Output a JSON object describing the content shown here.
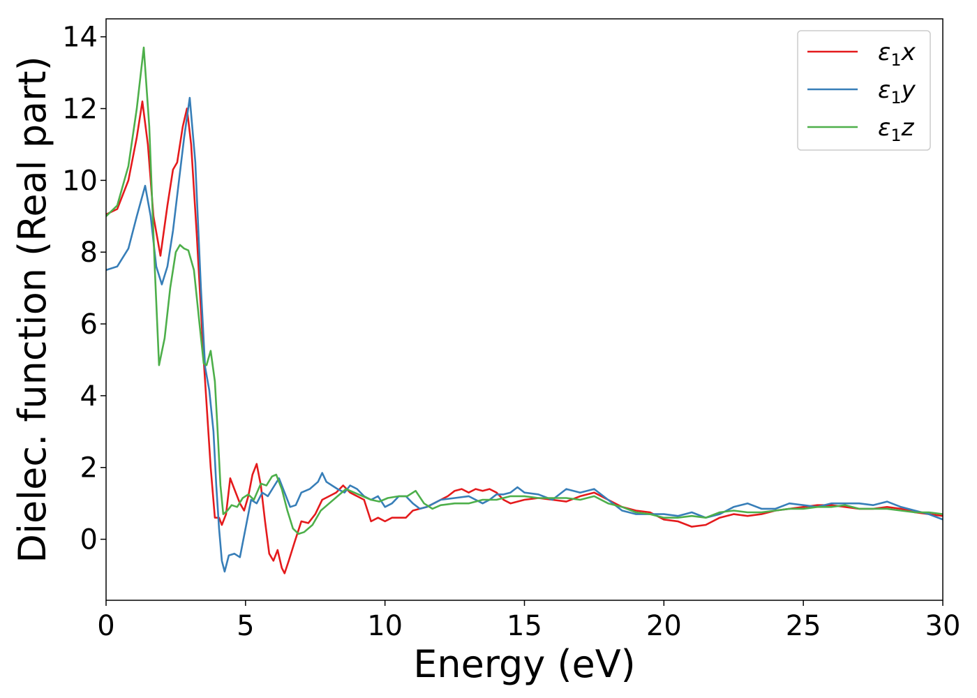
{
  "chart_data": {
    "type": "line",
    "title": "",
    "xlabel": "Energy (eV)",
    "ylabel": "Dielec. function (Real part)",
    "xlim": [
      0,
      30
    ],
    "ylim": [
      -1.7,
      14.5
    ],
    "xticks": [
      0,
      5,
      10,
      15,
      20,
      25,
      30
    ],
    "xtick_labels": [
      "0",
      "5",
      "10",
      "15",
      "20",
      "25",
      "30"
    ],
    "yticks": [
      0,
      2,
      4,
      6,
      8,
      10,
      12,
      14
    ],
    "ytick_labels": [
      "0",
      "2",
      "4",
      "6",
      "8",
      "10",
      "12",
      "14"
    ],
    "grid": false,
    "legend": {
      "placement": "top-right"
    },
    "series": [
      {
        "name": "ε₁x",
        "legend_base": "ε",
        "legend_sub": "1",
        "legend_var": "x",
        "color": "#e41a1c",
        "points": [
          [
            0,
            9.05
          ],
          [
            0.4,
            9.2
          ],
          [
            0.8,
            10.0
          ],
          [
            1.1,
            11.2
          ],
          [
            1.3,
            12.2
          ],
          [
            1.5,
            11.0
          ],
          [
            1.7,
            9.0
          ],
          [
            1.95,
            7.9
          ],
          [
            2.2,
            9.3
          ],
          [
            2.4,
            10.3
          ],
          [
            2.55,
            10.5
          ],
          [
            2.75,
            11.5
          ],
          [
            2.9,
            12.0
          ],
          [
            3.05,
            11.0
          ],
          [
            3.25,
            8.5
          ],
          [
            3.5,
            5.0
          ],
          [
            3.75,
            2.0
          ],
          [
            3.9,
            0.6
          ],
          [
            4.05,
            0.6
          ],
          [
            4.15,
            0.4
          ],
          [
            4.3,
            0.7
          ],
          [
            4.45,
            1.7
          ],
          [
            4.6,
            1.4
          ],
          [
            4.8,
            1.0
          ],
          [
            4.95,
            0.8
          ],
          [
            5.1,
            1.2
          ],
          [
            5.25,
            1.8
          ],
          [
            5.4,
            2.1
          ],
          [
            5.55,
            1.5
          ],
          [
            5.7,
            0.5
          ],
          [
            5.85,
            -0.4
          ],
          [
            6.0,
            -0.6
          ],
          [
            6.15,
            -0.3
          ],
          [
            6.3,
            -0.8
          ],
          [
            6.4,
            -0.95
          ],
          [
            6.55,
            -0.6
          ],
          [
            6.75,
            -0.1
          ],
          [
            7.0,
            0.5
          ],
          [
            7.25,
            0.45
          ],
          [
            7.5,
            0.7
          ],
          [
            7.75,
            1.1
          ],
          [
            8.0,
            1.2
          ],
          [
            8.25,
            1.3
          ],
          [
            8.5,
            1.5
          ],
          [
            8.75,
            1.3
          ],
          [
            9.0,
            1.2
          ],
          [
            9.25,
            1.1
          ],
          [
            9.5,
            0.5
          ],
          [
            9.75,
            0.6
          ],
          [
            10.0,
            0.5
          ],
          [
            10.25,
            0.6
          ],
          [
            10.5,
            0.6
          ],
          [
            10.75,
            0.6
          ],
          [
            11.0,
            0.8
          ],
          [
            11.25,
            0.85
          ],
          [
            11.5,
            0.9
          ],
          [
            11.75,
            1.0
          ],
          [
            12.0,
            1.1
          ],
          [
            12.25,
            1.2
          ],
          [
            12.5,
            1.35
          ],
          [
            12.75,
            1.4
          ],
          [
            13.0,
            1.3
          ],
          [
            13.25,
            1.4
          ],
          [
            13.5,
            1.35
          ],
          [
            13.75,
            1.4
          ],
          [
            14.0,
            1.3
          ],
          [
            14.25,
            1.1
          ],
          [
            14.5,
            1.0
          ],
          [
            15.0,
            1.1
          ],
          [
            15.5,
            1.15
          ],
          [
            16.0,
            1.1
          ],
          [
            16.5,
            1.05
          ],
          [
            17.0,
            1.2
          ],
          [
            17.5,
            1.3
          ],
          [
            18.0,
            1.1
          ],
          [
            18.5,
            0.9
          ],
          [
            19.0,
            0.8
          ],
          [
            19.5,
            0.75
          ],
          [
            20.0,
            0.55
          ],
          [
            20.5,
            0.5
          ],
          [
            21.0,
            0.35
          ],
          [
            21.5,
            0.4
          ],
          [
            22.0,
            0.6
          ],
          [
            22.5,
            0.7
          ],
          [
            23.0,
            0.65
          ],
          [
            23.5,
            0.7
          ],
          [
            24.0,
            0.8
          ],
          [
            24.5,
            0.85
          ],
          [
            25.0,
            0.9
          ],
          [
            25.5,
            0.95
          ],
          [
            26.0,
            0.95
          ],
          [
            26.5,
            0.9
          ],
          [
            27.0,
            0.85
          ],
          [
            27.5,
            0.85
          ],
          [
            28.0,
            0.9
          ],
          [
            28.5,
            0.85
          ],
          [
            29.0,
            0.75
          ],
          [
            29.5,
            0.7
          ],
          [
            30.0,
            0.65
          ]
        ]
      },
      {
        "name": "ε₁y",
        "legend_base": "ε",
        "legend_sub": "1",
        "legend_var": "y",
        "color": "#377eb8",
        "points": [
          [
            0,
            7.5
          ],
          [
            0.4,
            7.6
          ],
          [
            0.8,
            8.1
          ],
          [
            1.1,
            9.0
          ],
          [
            1.4,
            9.85
          ],
          [
            1.6,
            9.0
          ],
          [
            1.8,
            7.6
          ],
          [
            2.0,
            7.1
          ],
          [
            2.2,
            7.6
          ],
          [
            2.4,
            8.6
          ],
          [
            2.6,
            9.9
          ],
          [
            2.8,
            11.2
          ],
          [
            3.0,
            12.3
          ],
          [
            3.2,
            10.5
          ],
          [
            3.4,
            7.0
          ],
          [
            3.55,
            4.8
          ],
          [
            3.7,
            4.15
          ],
          [
            3.85,
            3.0
          ],
          [
            3.95,
            1.5
          ],
          [
            4.05,
            0.3
          ],
          [
            4.15,
            -0.6
          ],
          [
            4.25,
            -0.9
          ],
          [
            4.4,
            -0.45
          ],
          [
            4.6,
            -0.4
          ],
          [
            4.8,
            -0.5
          ],
          [
            5.0,
            0.3
          ],
          [
            5.2,
            1.1
          ],
          [
            5.4,
            1.0
          ],
          [
            5.6,
            1.3
          ],
          [
            5.8,
            1.2
          ],
          [
            6.0,
            1.45
          ],
          [
            6.2,
            1.7
          ],
          [
            6.4,
            1.3
          ],
          [
            6.6,
            0.9
          ],
          [
            6.8,
            0.95
          ],
          [
            7.0,
            1.3
          ],
          [
            7.3,
            1.4
          ],
          [
            7.6,
            1.6
          ],
          [
            7.75,
            1.85
          ],
          [
            7.9,
            1.6
          ],
          [
            8.1,
            1.5
          ],
          [
            8.3,
            1.4
          ],
          [
            8.55,
            1.3
          ],
          [
            8.75,
            1.5
          ],
          [
            9.0,
            1.4
          ],
          [
            9.25,
            1.2
          ],
          [
            9.5,
            1.1
          ],
          [
            9.75,
            1.2
          ],
          [
            10.0,
            0.9
          ],
          [
            10.25,
            1.0
          ],
          [
            10.5,
            1.2
          ],
          [
            10.75,
            1.2
          ],
          [
            11.0,
            1.0
          ],
          [
            11.25,
            0.85
          ],
          [
            11.5,
            0.9
          ],
          [
            11.75,
            1.0
          ],
          [
            12.0,
            1.1
          ],
          [
            12.5,
            1.15
          ],
          [
            13.0,
            1.2
          ],
          [
            13.25,
            1.1
          ],
          [
            13.5,
            1.0
          ],
          [
            13.75,
            1.1
          ],
          [
            14.0,
            1.25
          ],
          [
            14.25,
            1.25
          ],
          [
            14.5,
            1.3
          ],
          [
            14.75,
            1.45
          ],
          [
            15.0,
            1.3
          ],
          [
            15.5,
            1.25
          ],
          [
            16.0,
            1.1
          ],
          [
            16.5,
            1.4
          ],
          [
            17.0,
            1.3
          ],
          [
            17.5,
            1.4
          ],
          [
            18.0,
            1.1
          ],
          [
            18.5,
            0.8
          ],
          [
            19.0,
            0.7
          ],
          [
            19.5,
            0.7
          ],
          [
            20.0,
            0.7
          ],
          [
            20.5,
            0.65
          ],
          [
            21.0,
            0.75
          ],
          [
            21.5,
            0.6
          ],
          [
            22.0,
            0.7
          ],
          [
            22.5,
            0.9
          ],
          [
            23.0,
            1.0
          ],
          [
            23.5,
            0.85
          ],
          [
            24.0,
            0.85
          ],
          [
            24.5,
            1.0
          ],
          [
            25.0,
            0.95
          ],
          [
            25.5,
            0.9
          ],
          [
            26.0,
            1.0
          ],
          [
            26.5,
            1.0
          ],
          [
            27.0,
            1.0
          ],
          [
            27.5,
            0.95
          ],
          [
            28.0,
            1.05
          ],
          [
            28.5,
            0.9
          ],
          [
            29.0,
            0.8
          ],
          [
            29.5,
            0.7
          ],
          [
            30.0,
            0.55
          ]
        ]
      },
      {
        "name": "ε₁z",
        "legend_base": "ε",
        "legend_sub": "1",
        "legend_var": "z",
        "color": "#4daf4a",
        "points": [
          [
            0,
            9.0
          ],
          [
            0.4,
            9.3
          ],
          [
            0.8,
            10.4
          ],
          [
            1.1,
            12.0
          ],
          [
            1.35,
            13.7
          ],
          [
            1.55,
            11.5
          ],
          [
            1.75,
            7.5
          ],
          [
            1.9,
            4.85
          ],
          [
            2.1,
            5.6
          ],
          [
            2.3,
            7.0
          ],
          [
            2.5,
            8.0
          ],
          [
            2.65,
            8.2
          ],
          [
            2.8,
            8.1
          ],
          [
            2.95,
            8.05
          ],
          [
            3.15,
            7.5
          ],
          [
            3.35,
            6.0
          ],
          [
            3.5,
            4.9
          ],
          [
            3.6,
            4.85
          ],
          [
            3.75,
            5.25
          ],
          [
            3.9,
            4.4
          ],
          [
            4.0,
            3.0
          ],
          [
            4.1,
            1.5
          ],
          [
            4.2,
            0.7
          ],
          [
            4.35,
            0.8
          ],
          [
            4.5,
            0.95
          ],
          [
            4.7,
            0.9
          ],
          [
            4.9,
            1.15
          ],
          [
            5.1,
            1.25
          ],
          [
            5.3,
            1.1
          ],
          [
            5.55,
            1.55
          ],
          [
            5.75,
            1.5
          ],
          [
            5.95,
            1.75
          ],
          [
            6.1,
            1.8
          ],
          [
            6.3,
            1.4
          ],
          [
            6.5,
            0.8
          ],
          [
            6.7,
            0.3
          ],
          [
            6.9,
            0.15
          ],
          [
            7.1,
            0.2
          ],
          [
            7.4,
            0.4
          ],
          [
            7.7,
            0.8
          ],
          [
            8.0,
            1.0
          ],
          [
            8.3,
            1.2
          ],
          [
            8.6,
            1.4
          ],
          [
            8.9,
            1.3
          ],
          [
            9.2,
            1.2
          ],
          [
            9.5,
            1.1
          ],
          [
            9.8,
            1.05
          ],
          [
            10.1,
            1.15
          ],
          [
            10.5,
            1.2
          ],
          [
            10.8,
            1.2
          ],
          [
            11.1,
            1.35
          ],
          [
            11.4,
            1.0
          ],
          [
            11.7,
            0.85
          ],
          [
            12.0,
            0.95
          ],
          [
            12.5,
            1.0
          ],
          [
            13.0,
            1.0
          ],
          [
            13.5,
            1.1
          ],
          [
            14.0,
            1.1
          ],
          [
            14.5,
            1.2
          ],
          [
            15.0,
            1.2
          ],
          [
            15.5,
            1.15
          ],
          [
            16.0,
            1.15
          ],
          [
            16.5,
            1.15
          ],
          [
            17.0,
            1.1
          ],
          [
            17.5,
            1.2
          ],
          [
            18.0,
            1.0
          ],
          [
            18.5,
            0.9
          ],
          [
            19.0,
            0.75
          ],
          [
            19.5,
            0.7
          ],
          [
            20.0,
            0.6
          ],
          [
            20.5,
            0.6
          ],
          [
            21.0,
            0.65
          ],
          [
            21.5,
            0.6
          ],
          [
            22.0,
            0.75
          ],
          [
            22.5,
            0.8
          ],
          [
            23.0,
            0.75
          ],
          [
            23.5,
            0.75
          ],
          [
            24.0,
            0.8
          ],
          [
            24.5,
            0.85
          ],
          [
            25.0,
            0.85
          ],
          [
            25.5,
            0.9
          ],
          [
            26.0,
            0.9
          ],
          [
            26.5,
            0.95
          ],
          [
            27.0,
            0.85
          ],
          [
            27.5,
            0.85
          ],
          [
            28.0,
            0.85
          ],
          [
            28.5,
            0.8
          ],
          [
            29.0,
            0.75
          ],
          [
            29.5,
            0.75
          ],
          [
            30.0,
            0.7
          ]
        ]
      }
    ]
  }
}
